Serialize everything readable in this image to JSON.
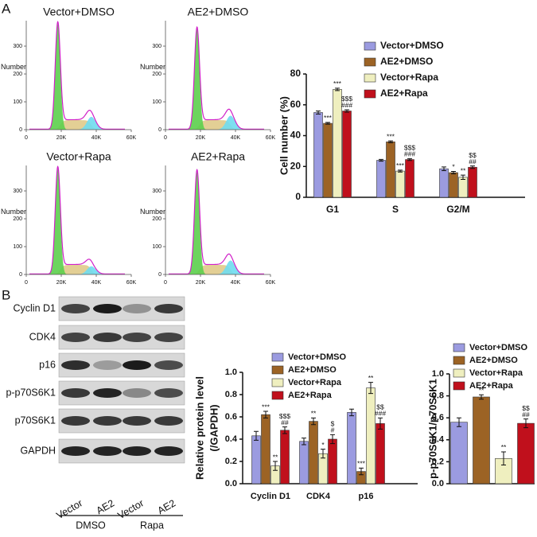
{
  "panel_labels": [
    "A",
    "B"
  ],
  "blot": {
    "proteins": [
      "Cyclin D1",
      "CDK4",
      "p16",
      "p-p70S6K1",
      "p70S6K1",
      "GAPDH"
    ],
    "lanes": [
      "Vector",
      "AE2",
      "Vector",
      "AE2"
    ],
    "groups": [
      "DMSO",
      "Rapa"
    ]
  },
  "chart_data": [
    {
      "type": "flow",
      "title": "Vector+DMSO",
      "ylabel": "Number",
      "xlim": [
        0,
        60000
      ],
      "xticks": [
        0,
        {
          "value": 20000,
          "label": "20K"
        },
        {
          "value": 40000,
          "label": "40K"
        },
        {
          "value": 60000,
          "label": "60K"
        }
      ],
      "ylim": [
        0,
        380
      ],
      "yticks": [
        0,
        100,
        200,
        300
      ]
    },
    {
      "type": "flow",
      "title": "AE2+DMSO",
      "ylabel": "Number",
      "xlim": [
        0,
        60000
      ],
      "xticks": [
        0,
        {
          "value": 20000,
          "label": "20K"
        },
        {
          "value": 40000,
          "label": "40K"
        },
        {
          "value": 60000,
          "label": "60K"
        }
      ],
      "ylim": [
        0,
        380
      ],
      "yticks": [
        0,
        100,
        200,
        300
      ]
    },
    {
      "type": "flow",
      "title": "Vector+Rapa",
      "ylabel": "Number",
      "xlim": [
        0,
        60000
      ],
      "xticks": [
        0,
        {
          "value": 20000,
          "label": "20K"
        },
        {
          "value": 40000,
          "label": "40K"
        },
        {
          "value": 60000,
          "label": "60K"
        }
      ],
      "ylim": [
        0,
        380
      ],
      "yticks": [
        0,
        100,
        200,
        300
      ]
    },
    {
      "type": "flow",
      "title": "AE2+Rapa",
      "ylabel": "Number",
      "xlim": [
        0,
        60000
      ],
      "xticks": [
        0,
        {
          "value": 20000,
          "label": "20K"
        },
        {
          "value": 40000,
          "label": "40K"
        },
        {
          "value": 60000,
          "label": "60K"
        }
      ],
      "ylim": [
        0,
        380
      ],
      "yticks": [
        0,
        100,
        200,
        300
      ]
    },
    {
      "type": "bar",
      "ylabel": [
        "Cell number (%)"
      ],
      "categories": [
        "G1",
        "S",
        "G2/M"
      ],
      "ylim": [
        0,
        80
      ],
      "yticks": [
        0,
        20,
        40,
        60,
        80
      ],
      "series": [
        {
          "name": "Vector+DMSO",
          "color": "#9b9be0",
          "values": [
            55,
            24,
            18.5
          ],
          "errors": [
            1,
            0.6,
            1.2
          ],
          "annotations": [
            null,
            null,
            null
          ]
        },
        {
          "name": "AE2+DMSO",
          "color": "#9c6325",
          "values": [
            48,
            36,
            16
          ],
          "errors": [
            0.6,
            0.6,
            0.8
          ],
          "annotations": [
            [
              "***"
            ],
            [
              "***"
            ],
            [
              "*"
            ]
          ]
        },
        {
          "name": "Vector+Rapa",
          "color": "#efefbf",
          "values": [
            70,
            17,
            13
          ],
          "errors": [
            0.8,
            0.6,
            1.4
          ],
          "annotations": [
            [
              "***"
            ],
            [
              "***"
            ],
            [
              "**"
            ]
          ]
        },
        {
          "name": "AE2+Rapa",
          "color": "#c0101c",
          "values": [
            56,
            24.5,
            19.5
          ],
          "errors": [
            0.8,
            0.6,
            0.8
          ],
          "annotations": [
            [
              "$$$",
              "###"
            ],
            [
              "$$$",
              "###"
            ],
            [
              "$$",
              "##"
            ]
          ]
        }
      ]
    },
    {
      "type": "bar",
      "ylabel": [
        "Relative protein level",
        "(/GAPDH)"
      ],
      "categories": [
        "Cyclin D1",
        "CDK4",
        "p16"
      ],
      "ylim": [
        0,
        1
      ],
      "yticks": [
        {
          "value": 0,
          "label": "0.0"
        },
        0.2,
        0.4,
        0.6,
        0.8,
        {
          "value": 1,
          "label": "1.0"
        }
      ],
      "series": [
        {
          "name": "Vector+DMSO",
          "color": "#9b9be0",
          "values": [
            0.43,
            0.38,
            0.64
          ],
          "errors": [
            0.04,
            0.03,
            0.03
          ],
          "annotations": [
            null,
            null,
            null
          ]
        },
        {
          "name": "AE2+DMSO",
          "color": "#9c6325",
          "values": [
            0.62,
            0.56,
            0.11
          ],
          "errors": [
            0.03,
            0.03,
            0.03
          ],
          "annotations": [
            [
              "***"
            ],
            [
              "**"
            ],
            [
              "***"
            ]
          ]
        },
        {
          "name": "Vector+Rapa",
          "color": "#efefbf",
          "values": [
            0.16,
            0.27,
            0.86
          ],
          "errors": [
            0.04,
            0.04,
            0.05
          ],
          "annotations": [
            [
              "**"
            ],
            [
              "*"
            ],
            [
              "**"
            ]
          ]
        },
        {
          "name": "AE2+Rapa",
          "color": "#c0101c",
          "values": [
            0.48,
            0.4,
            0.54
          ],
          "errors": [
            0.03,
            0.04,
            0.05
          ],
          "annotations": [
            [
              "$$$",
              "##"
            ],
            [
              "$",
              "#"
            ],
            [
              "$$",
              "###"
            ]
          ]
        }
      ]
    },
    {
      "type": "bar",
      "ylabel": [
        "p-p70S6K1/p70S6K1"
      ],
      "categories": [
        null
      ],
      "ylim": [
        0,
        1
      ],
      "yticks": [
        {
          "value": 0,
          "label": "0.0"
        },
        0.2,
        0.4,
        0.6,
        0.8,
        {
          "value": 1,
          "label": "1.0"
        }
      ],
      "series": [
        {
          "name": "Vector+DMSO",
          "color": "#9b9be0",
          "values": [
            0.56
          ],
          "errors": [
            0.04
          ],
          "annotations": [
            null
          ]
        },
        {
          "name": "AE2+DMSO",
          "color": "#9c6325",
          "values": [
            0.79
          ],
          "errors": [
            0.02
          ],
          "annotations": [
            [
              "**"
            ]
          ]
        },
        {
          "name": "Vector+Rapa",
          "color": "#efefbf",
          "values": [
            0.23
          ],
          "errors": [
            0.06
          ],
          "annotations": [
            [
              "**"
            ]
          ]
        },
        {
          "name": "AE2+Rapa",
          "color": "#c0101c",
          "values": [
            0.55
          ],
          "errors": [
            0.04
          ],
          "annotations": [
            [
              "$$",
              "##"
            ]
          ]
        }
      ]
    }
  ]
}
